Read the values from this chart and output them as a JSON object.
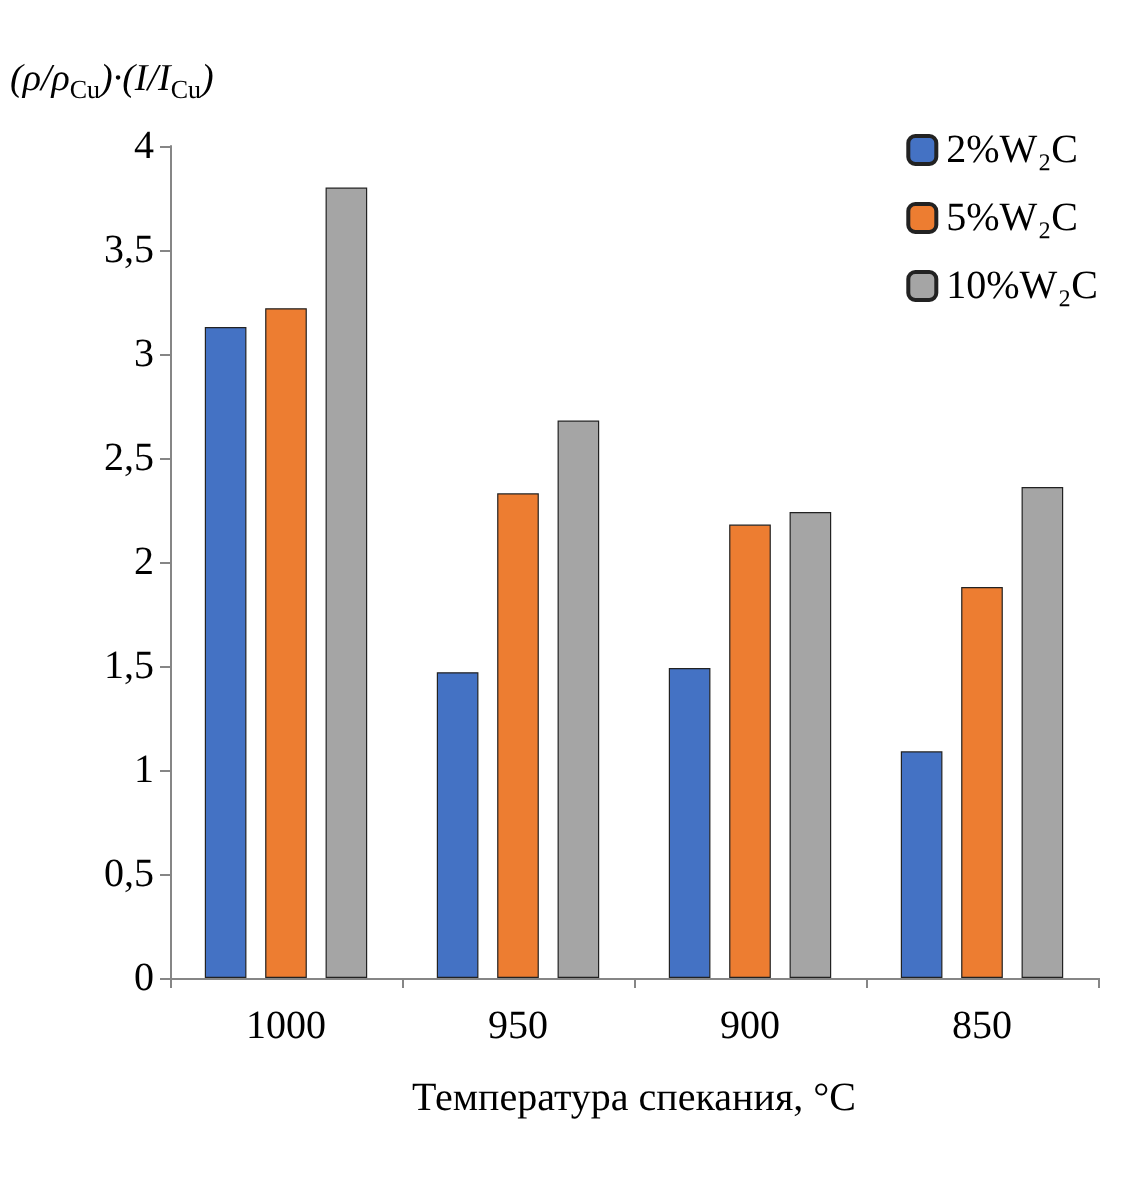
{
  "chart_data": {
    "type": "bar",
    "ylabel": "(ρ/ρ$_{Cu}$)·(I/I$_{Cu}$)",
    "xlabel": "Температура спекания, °C",
    "categories": [
      "1000",
      "950",
      "900",
      "850"
    ],
    "series": [
      {
        "name": "2%W₂C",
        "color": "#4472c4",
        "values": [
          3.13,
          1.47,
          1.49,
          1.09
        ]
      },
      {
        "name": "5%W₂C",
        "color": "#ed7d31",
        "values": [
          3.22,
          2.33,
          2.18,
          1.88
        ]
      },
      {
        "name": "10%W₂C",
        "color": "#a5a5a5",
        "values": [
          3.8,
          2.68,
          2.24,
          2.36
        ]
      }
    ],
    "ylim": [
      0,
      4
    ],
    "yticks": [
      0,
      {
        "value": 0.5,
        "label": "0,5"
      },
      1,
      {
        "value": 1.5,
        "label": "1,5"
      },
      2,
      {
        "value": 2.5,
        "label": "2,5"
      },
      3,
      {
        "value": 3.5,
        "label": "3,5"
      },
      4
    ],
    "grid": false,
    "legend": "top right"
  }
}
